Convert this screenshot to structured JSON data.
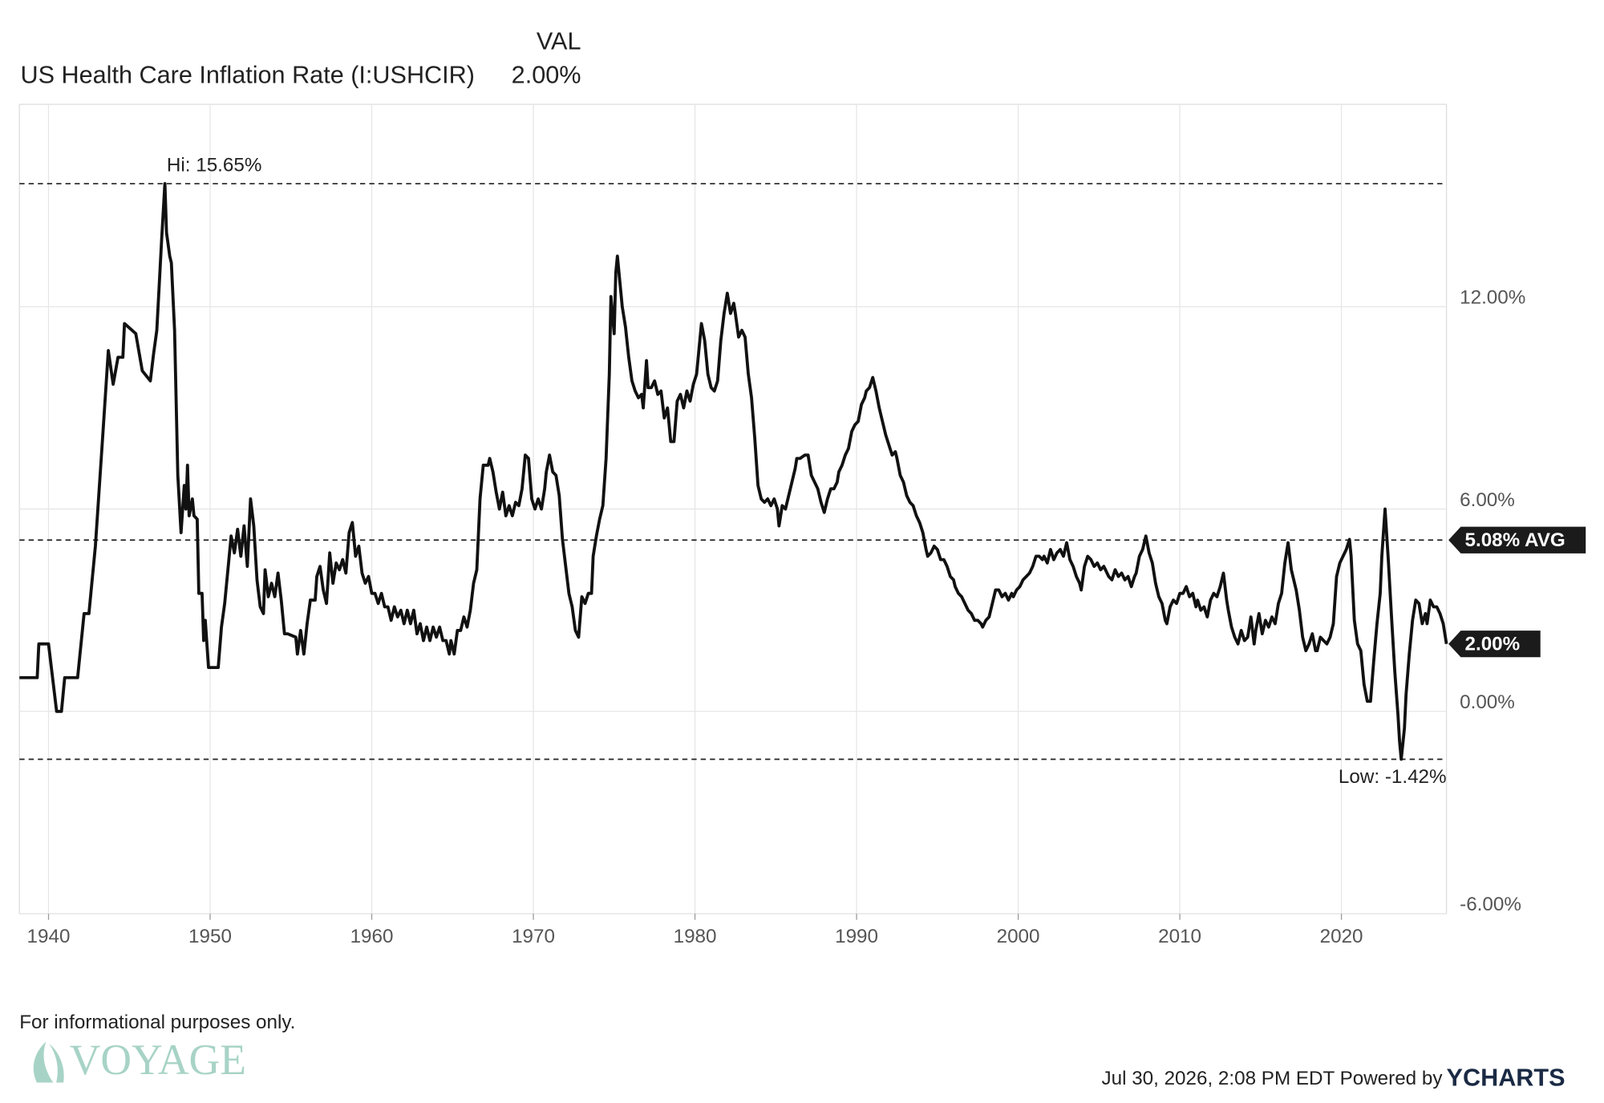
{
  "chart_data": {
    "type": "line",
    "legend": {
      "header": "VAL",
      "name": "US Health Care Inflation Rate (I:USHCIR)",
      "value_label": "2.00%"
    },
    "series": [
      {
        "name": "US Health Care Inflation Rate (I:USHCIR)",
        "color": "#111111",
        "x": [
          1938.2,
          1939.3,
          1939.4,
          1940,
          1940.5,
          1940.8,
          1941,
          1941.8,
          1942.2,
          1942.5,
          1942.9,
          1943.4,
          1943.7,
          1944,
          1944.3,
          1944.6,
          1944.7,
          1945.4,
          1945.8,
          1946.3,
          1946.5,
          1946.7,
          1947,
          1947.2,
          1947.3,
          1947.5,
          1947.6,
          1947.8,
          1948,
          1948.2,
          1948.4,
          1948.5,
          1948.6,
          1948.7,
          1948.9,
          1949,
          1949.2,
          1949.3,
          1949.5,
          1949.6,
          1949.7,
          1949.9,
          1950.5,
          1950.7,
          1950.9,
          1951.1,
          1951.3,
          1951.5,
          1951.7,
          1951.9,
          1952.1,
          1952.3,
          1952.5,
          1952.7,
          1952.9,
          1953.1,
          1953.3,
          1953.4,
          1953.6,
          1953.8,
          1954,
          1954.2,
          1954.4,
          1954.6,
          1954.8,
          1955.3,
          1955.4,
          1955.6,
          1955.8,
          1956,
          1956.2,
          1956.5,
          1956.6,
          1956.8,
          1957,
          1957.2,
          1957.4,
          1957.6,
          1957.8,
          1958,
          1958.2,
          1958.4,
          1958.6,
          1958.8,
          1959,
          1959.2,
          1959.4,
          1959.6,
          1959.8,
          1960,
          1960.2,
          1960.4,
          1960.6,
          1960.8,
          1961,
          1961.2,
          1961.4,
          1961.6,
          1961.8,
          1962,
          1962.2,
          1962.4,
          1962.6,
          1962.8,
          1963,
          1963.2,
          1963.4,
          1963.6,
          1963.8,
          1964,
          1964.2,
          1964.4,
          1964.6,
          1964.8,
          1964.9,
          1965.1,
          1965.3,
          1965.5,
          1965.7,
          1965.9,
          1966.1,
          1966.3,
          1966.5,
          1966.7,
          1966.9,
          1967.2,
          1967.3,
          1967.5,
          1967.7,
          1967.9,
          1968.1,
          1968.3,
          1968.5,
          1968.7,
          1968.9,
          1969.1,
          1969.3,
          1969.5,
          1969.7,
          1969.9,
          1970.1,
          1970.3,
          1970.5,
          1970.7,
          1970.8,
          1971,
          1971.2,
          1971.4,
          1971.6,
          1971.8,
          1972,
          1972.2,
          1972.4,
          1972.6,
          1972.8,
          1973,
          1973.2,
          1973.4,
          1973.6,
          1973.7,
          1973.9,
          1974.1,
          1974.3,
          1974.5,
          1974.7,
          1974.8,
          1975,
          1975.1,
          1975.2,
          1975.3,
          1975.5,
          1975.7,
          1975.9,
          1976.1,
          1976.3,
          1976.5,
          1976.7,
          1976.8,
          1977,
          1977.1,
          1977.3,
          1977.5,
          1977.7,
          1977.9,
          1978.1,
          1978.3,
          1978.5,
          1978.7,
          1978.9,
          1979.1,
          1979.3,
          1979.5,
          1979.7,
          1979.9,
          1980.1,
          1980.3,
          1980.4,
          1980.6,
          1980.8,
          1981,
          1981.2,
          1981.4,
          1981.6,
          1981.8,
          1982,
          1982.2,
          1982.4,
          1982.5,
          1982.7,
          1982.9,
          1983.1,
          1983.3,
          1983.5,
          1983.7,
          1983.9,
          1984.1,
          1984.3,
          1984.5,
          1984.7,
          1984.9,
          1985.1,
          1985.2,
          1985.4,
          1985.6,
          1985.8,
          1986,
          1986.2,
          1986.3,
          1986.5,
          1986.8,
          1987,
          1987.2,
          1987.4,
          1987.6,
          1987.8,
          1988,
          1988.2,
          1988.4,
          1988.6,
          1988.8,
          1988.9,
          1989.1,
          1989.3,
          1989.5,
          1989.7,
          1989.9,
          1990.1,
          1990.3,
          1990.5,
          1990.6,
          1990.8,
          1991,
          1991.2,
          1991.4,
          1991.6,
          1991.8,
          1992,
          1992.2,
          1992.4,
          1992.5,
          1992.7,
          1992.9,
          1993.1,
          1993.3,
          1993.5,
          1993.7,
          1993.9,
          1994.1,
          1994.3,
          1994.4,
          1994.6,
          1994.8,
          1995,
          1995.2,
          1995.4,
          1995.6,
          1995.8,
          1996,
          1996.1,
          1996.3,
          1996.5,
          1996.7,
          1996.9,
          1997.1,
          1997.3,
          1997.5,
          1997.7,
          1997.8,
          1998,
          1998.2,
          1998.4,
          1998.6,
          1998.8,
          1999,
          1999.2,
          1999.4,
          1999.6,
          1999.7,
          1999.9,
          2000.1,
          2000.3,
          2000.5,
          2000.7,
          2000.9,
          2001.1,
          2001.3,
          2001.5,
          2001.6,
          2001.8,
          2002,
          2002.2,
          2002.4,
          2002.6,
          2002.8,
          2003,
          2003.2,
          2003.4,
          2003.6,
          2003.8,
          2003.9,
          2004.1,
          2004.3,
          2004.5,
          2004.7,
          2004.9,
          2005.1,
          2005.3,
          2005.4,
          2005.6,
          2005.8,
          2006,
          2006.2,
          2006.4,
          2006.6,
          2006.8,
          2007,
          2007.2,
          2007.3,
          2007.5,
          2007.7,
          2007.9,
          2008.1,
          2008.3,
          2008.5,
          2008.7,
          2008.9,
          2009.1,
          2009.2,
          2009.4,
          2009.6,
          2009.8,
          2010,
          2010.2,
          2010.4,
          2010.6,
          2010.8,
          2011,
          2011.1,
          2011.3,
          2011.5,
          2011.7,
          2011.9,
          2012.1,
          2012.3,
          2012.5,
          2012.7,
          2012.9,
          2013,
          2013.2,
          2013.4,
          2013.6,
          2013.8,
          2014,
          2014.2,
          2014.4,
          2014.6,
          2014.7,
          2014.9,
          2015.1,
          2015.3,
          2015.5,
          2015.7,
          2015.9,
          2016.1,
          2016.3,
          2016.5,
          2016.7,
          2016.9,
          2017,
          2017.2,
          2017.4,
          2017.6,
          2017.8,
          2018,
          2018.2,
          2018.4,
          2018.5,
          2018.7,
          2018.9,
          2019.1,
          2019.3,
          2019.5,
          2019.7,
          2019.9,
          2020.1,
          2020.3,
          2020.5,
          2020.6,
          2020.8,
          2021,
          2021.2,
          2021.4,
          2021.6,
          2021.8,
          2022,
          2022.2,
          2022.4,
          2022.5,
          2022.7,
          2022.9,
          2023.1,
          2023.3,
          2023.5,
          2023.6,
          2023.7,
          2023.9,
          2024,
          2024.2,
          2024.4,
          2024.6,
          2024.8,
          2025,
          2025.2,
          2025.3,
          2025.5,
          2025.7,
          2025.9,
          2026.1,
          2026.3,
          2026.5
        ],
        "values": [
          1,
          1,
          2,
          2,
          0,
          0,
          1,
          1,
          2.9,
          2.9,
          4.9,
          8.5,
          10.7,
          9.7,
          10.5,
          10.5,
          11.5,
          11.2,
          10.1,
          9.8,
          10.6,
          11.3,
          14,
          15.65,
          14.2,
          13.5,
          13.3,
          11.3,
          7,
          5.3,
          6.7,
          6,
          7.3,
          5.8,
          6.3,
          5.8,
          5.7,
          3.5,
          3.5,
          2.1,
          2.7,
          1.3,
          1.3,
          2.5,
          3.2,
          4.2,
          5.2,
          4.7,
          5.4,
          4.6,
          5.5,
          4.3,
          6.3,
          5.5,
          3.9,
          3.1,
          2.9,
          4.2,
          3.4,
          3.8,
          3.4,
          4.1,
          3.3,
          2.3,
          2.3,
          2.2,
          1.7,
          2.4,
          1.7,
          2.6,
          3.3,
          3.3,
          4,
          4.3,
          3.6,
          3.2,
          4.7,
          3.8,
          4.4,
          4.2,
          4.5,
          4.1,
          5.3,
          5.6,
          4.6,
          4.9,
          4.1,
          3.8,
          4,
          3.5,
          3.5,
          3.2,
          3.5,
          3.1,
          3.1,
          2.7,
          3.1,
          2.8,
          3,
          2.6,
          3,
          2.6,
          3,
          2.3,
          2.6,
          2.1,
          2.5,
          2.1,
          2.5,
          2.2,
          2.5,
          2.1,
          2.1,
          1.7,
          2.1,
          1.7,
          2.4,
          2.4,
          2.8,
          2.5,
          3,
          3.8,
          4.2,
          6.3,
          7.3,
          7.3,
          7.5,
          7.1,
          6.5,
          6,
          6.5,
          5.8,
          6.1,
          5.8,
          6.2,
          6.1,
          6.6,
          7.6,
          7.5,
          6.3,
          6,
          6.3,
          6,
          6.6,
          7.1,
          7.6,
          7.1,
          7,
          6.4,
          5.1,
          4.3,
          3.5,
          3.1,
          2.4,
          2.2,
          3.4,
          3.2,
          3.5,
          3.5,
          4.6,
          5.2,
          5.7,
          6.1,
          7.5,
          10,
          12.3,
          11.2,
          13,
          13.5,
          13,
          12,
          11.4,
          10.5,
          9.8,
          9.5,
          9.3,
          9.4,
          9,
          10.4,
          9.6,
          9.6,
          9.8,
          9.4,
          9.5,
          8.7,
          9,
          8,
          8,
          9.2,
          9.4,
          9,
          9.5,
          9.2,
          9.7,
          10,
          11,
          11.5,
          11,
          10,
          9.6,
          9.5,
          9.8,
          11,
          11.8,
          12.4,
          11.8,
          12.1,
          11.8,
          11.1,
          11.3,
          11.1,
          10,
          9.3,
          8.1,
          6.7,
          6.3,
          6.2,
          6.3,
          6.1,
          6.3,
          6,
          5.5,
          6.1,
          6,
          6.4,
          6.8,
          7.2,
          7.5,
          7.5,
          7.6,
          7.6,
          7,
          6.8,
          6.6,
          6.2,
          5.9,
          6.3,
          6.6,
          6.6,
          6.8,
          7.1,
          7.3,
          7.6,
          7.8,
          8.3,
          8.5,
          8.6,
          9.1,
          9.3,
          9.5,
          9.6,
          9.9,
          9.5,
          9,
          8.6,
          8.2,
          7.9,
          7.6,
          7.7,
          7.5,
          7,
          6.8,
          6.4,
          6.2,
          6.1,
          5.8,
          5.6,
          5.3,
          4.8,
          4.6,
          4.7,
          4.9,
          4.8,
          4.5,
          4.5,
          4.3,
          4,
          3.9,
          3.7,
          3.5,
          3.4,
          3.2,
          3,
          2.9,
          2.7,
          2.7,
          2.6,
          2.5,
          2.7,
          2.8,
          3.2,
          3.6,
          3.6,
          3.4,
          3.5,
          3.3,
          3.5,
          3.4,
          3.6,
          3.7,
          3.9,
          4,
          4.1,
          4.3,
          4.6,
          4.6,
          4.5,
          4.6,
          4.4,
          4.8,
          4.5,
          4.7,
          4.8,
          4.6,
          5,
          4.5,
          4.3,
          4,
          3.8,
          3.6,
          4.3,
          4.6,
          4.5,
          4.3,
          4.4,
          4.2,
          4.3,
          4.2,
          4,
          3.9,
          4.2,
          4,
          4.1,
          3.9,
          4,
          3.7,
          4,
          4.1,
          4.6,
          4.8,
          5.2,
          4.7,
          4.4,
          3.8,
          3.4,
          3.2,
          2.7,
          2.6,
          3.1,
          3.3,
          3.2,
          3.5,
          3.5,
          3.7,
          3.4,
          3.5,
          3.1,
          3.3,
          3,
          3.1,
          2.8,
          3.3,
          3.5,
          3.4,
          3.7,
          4.1,
          3.3,
          3,
          2.5,
          2.2,
          2,
          2.4,
          2.1,
          2.2,
          2.8,
          2,
          2.4,
          2.9,
          2.3,
          2.7,
          2.5,
          2.8,
          2.6,
          3.2,
          3.5,
          4.4,
          5,
          4.2,
          4,
          3.6,
          3,
          2.2,
          1.8,
          2,
          2.3,
          1.8,
          1.8,
          2.2,
          2.1,
          2,
          2.2,
          2.6,
          4,
          4.4,
          4.6,
          4.8,
          5.1,
          4.6,
          2.7,
          2,
          1.8,
          0.8,
          0.3,
          0.3,
          1.5,
          2.6,
          3.5,
          4.6,
          6,
          4.5,
          2.8,
          1.2,
          -0.1,
          -0.9,
          -1.42,
          -0.5,
          0.5,
          1.7,
          2.7,
          3.3,
          3.2,
          2.6,
          2.9,
          2.6,
          3.3,
          3.1,
          3.1,
          2.9,
          2.6,
          2
        ]
      }
    ],
    "xlim": [
      1938.2,
      2026.5
    ],
    "xticks": [
      1940,
      1950,
      1960,
      1970,
      1980,
      1990,
      2000,
      2010,
      2020
    ],
    "ylim": [
      -6,
      18
    ],
    "yticks": [
      {
        "value": -6,
        "label": "-6.00%"
      },
      {
        "value": 0,
        "label": "0.00%"
      },
      {
        "value": 6,
        "label": "6.00%"
      },
      {
        "value": 12,
        "label": "12.00%"
      }
    ],
    "grid": true,
    "high": {
      "value": 15.65,
      "label": "Hi: 15.65%"
    },
    "low": {
      "value": -1.42,
      "label": "Low: -1.42%"
    },
    "average": {
      "value": 5.08,
      "label": "5.08% AVG"
    },
    "last": {
      "value": 2,
      "label": "2.00%"
    },
    "footnote": "For informational purposes only.",
    "logo": "VOYAGE",
    "timestamp": "Jul 30, 2026, 2:08 PM EDT Powered by",
    "brand": "YCHARTS"
  }
}
